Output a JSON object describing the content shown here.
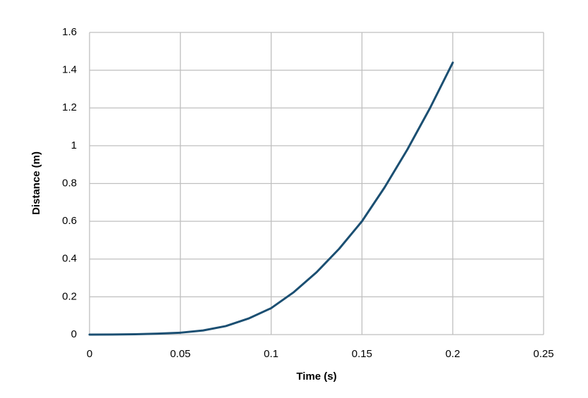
{
  "chart_data": {
    "type": "line",
    "x_label": "Time (s)",
    "y_label": "Distance (m)",
    "x": [
      0,
      0.0125,
      0.025,
      0.0375,
      0.05,
      0.0625,
      0.075,
      0.0875,
      0.1,
      0.1125,
      0.125,
      0.1375,
      0.15,
      0.1625,
      0.175,
      0.1875,
      0.2
    ],
    "series": [
      {
        "color": "#1b4f72",
        "values": [
          0,
          0.0005,
          0.002,
          0.005,
          0.01,
          0.022,
          0.045,
          0.085,
          0.14,
          0.225,
          0.33,
          0.455,
          0.6,
          0.78,
          0.98,
          1.2,
          1.44
        ]
      }
    ],
    "xlim": [
      0,
      0.25
    ],
    "xticks": [
      0,
      0.05,
      0.1,
      0.15,
      0.2,
      0.25
    ],
    "ylim": [
      0,
      1.6
    ],
    "yticks": [
      0,
      0.2,
      0.4,
      0.6,
      0.8,
      1,
      1.2,
      1.4,
      1.6
    ],
    "grid": true
  }
}
